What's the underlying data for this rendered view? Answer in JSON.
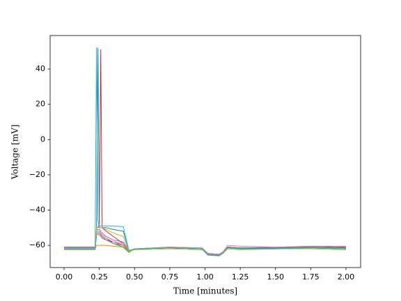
{
  "chart_data": {
    "type": "line",
    "xlabel": "Time [minutes]",
    "ylabel": "Voltage [mV]",
    "x": [
      0,
      0.22,
      0.23,
      0.24,
      0.25,
      0.26,
      0.27,
      0.3,
      0.35,
      0.42,
      0.46,
      0.5,
      0.75,
      0.98,
      1.02,
      1.1,
      1.13,
      1.16,
      1.25,
      1.5,
      1.75,
      2.0
    ],
    "xlim": [
      -0.099,
      2.104
    ],
    "xticks": [
      {
        "value": 0,
        "label": "0.00"
      },
      {
        "value": 0.25,
        "label": "0.25"
      },
      {
        "value": 0.5,
        "label": "0.50"
      },
      {
        "value": 0.75,
        "label": "0.75"
      },
      {
        "value": 1.0,
        "label": "1.00"
      },
      {
        "value": 1.25,
        "label": "1.25"
      },
      {
        "value": 1.5,
        "label": "1.50"
      },
      {
        "value": 1.75,
        "label": "1.75"
      },
      {
        "value": 2.0,
        "label": "2.00"
      }
    ],
    "ylim": [
      -72.6,
      59.0
    ],
    "yticks": [
      {
        "value": -60,
        "label": "−60"
      },
      {
        "value": -40,
        "label": "−40"
      },
      {
        "value": -20,
        "label": "−20"
      },
      0,
      20,
      40
    ],
    "grid": false,
    "series": [
      {
        "color": "#1f77b4",
        "values": [
          -62,
          -62,
          -55,
          52,
          -50,
          -50,
          -50,
          -50,
          -51,
          -52,
          -63,
          -62,
          -61.5,
          -62,
          -65,
          -65.5,
          -64,
          -61.5,
          -62,
          -62,
          -61.5,
          -62
        ]
      },
      {
        "color": "#ff7f0e",
        "values": [
          -62,
          -62,
          -60,
          -60,
          -60,
          -60,
          -60,
          -60,
          -60.5,
          -61,
          -63,
          -62.5,
          -61,
          -62,
          -65,
          -66,
          -64,
          -61,
          -61.5,
          -61.5,
          -61,
          -61.5
        ]
      },
      {
        "color": "#2ca02c",
        "values": [
          -62.5,
          -62.5,
          -52,
          -52,
          -52,
          -53,
          -54,
          -56,
          -59,
          -61,
          -64,
          -62,
          -61.5,
          -62,
          -65.5,
          -66,
          -64,
          -61.5,
          -62,
          -62,
          -61.5,
          -62
        ]
      },
      {
        "color": "#d62728",
        "values": [
          -62,
          -62,
          -50,
          -50,
          -48,
          51,
          -50,
          -52,
          -55,
          -59,
          -63.5,
          -62,
          -61.5,
          -62,
          -65,
          -65.5,
          -64,
          -61,
          -61.5,
          -61.5,
          -61,
          -61.5
        ]
      },
      {
        "color": "#9467bd",
        "values": [
          -61.5,
          -61.5,
          -51,
          -51,
          -51,
          -52,
          -53,
          -55,
          -57,
          -58,
          -63,
          -62,
          -61.5,
          -62,
          -65,
          -65.5,
          -64,
          -61,
          -61.5,
          -61,
          -61,
          -61.5
        ]
      },
      {
        "color": "#8c564b",
        "values": [
          -61,
          -61,
          -53,
          -53,
          -53,
          -54,
          -55,
          -57,
          -58,
          -60,
          -63,
          -62,
          -61,
          -61.5,
          -65,
          -65.5,
          -64,
          -61,
          -61.5,
          -61.5,
          -60.5,
          -61
        ]
      },
      {
        "color": "#e377c2",
        "values": [
          -62,
          -62,
          -52,
          -52,
          -52,
          -53,
          -54,
          -56,
          -58,
          -59,
          -63,
          -62,
          -61,
          -61.5,
          -64.5,
          -65,
          -63.5,
          -60,
          -60.5,
          -61,
          -60.5,
          -60.5
        ]
      },
      {
        "color": "#7f7f7f",
        "values": [
          -62,
          -62,
          -54,
          -54,
          -54,
          -55,
          -56,
          -57,
          -59,
          -60,
          -63,
          -62,
          -61.5,
          -62,
          -65,
          -65.5,
          -64,
          -61,
          -61.5,
          -61.5,
          -61,
          -61.5
        ]
      },
      {
        "color": "#bcbd22",
        "values": [
          -62.5,
          -62.5,
          -50,
          -50,
          -50,
          -50,
          -50,
          -51,
          -53,
          -55,
          -63.5,
          -62.5,
          -62,
          -62.5,
          -65.5,
          -66,
          -64.5,
          -62,
          -62.5,
          -62,
          -62,
          -62.5
        ]
      },
      {
        "color": "#17becf",
        "values": [
          -62,
          -62,
          52,
          -46,
          -49,
          -49,
          -49,
          -49,
          -49,
          -49.5,
          -63,
          -62,
          -61.5,
          -62,
          -65.5,
          -66,
          -64,
          -61.5,
          -62,
          -62,
          -61.5,
          -62
        ]
      }
    ]
  }
}
